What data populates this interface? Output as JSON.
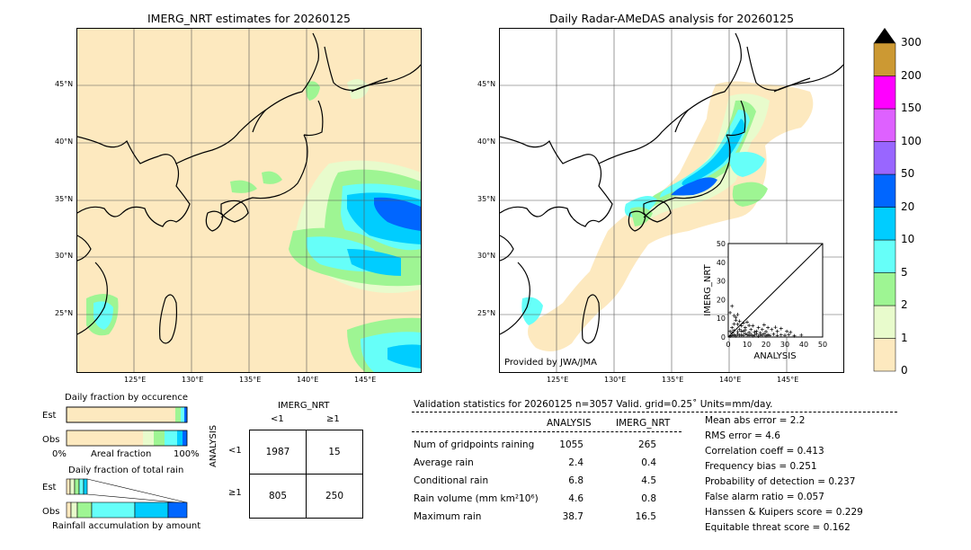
{
  "left_map": {
    "title": "IMERG_NRT estimates for 20260125",
    "lat_ticks": [
      "45°N",
      "40°N",
      "35°N",
      "30°N",
      "25°N"
    ],
    "lon_ticks": [
      "125°E",
      "130°E",
      "135°E",
      "140°E",
      "145°E"
    ]
  },
  "right_map": {
    "title": "Daily Radar-AMeDAS analysis for 20260125",
    "lat_ticks": [
      "45°N",
      "40°N",
      "35°N",
      "30°N",
      "25°N"
    ],
    "lon_ticks": [
      "125°E",
      "130°E",
      "135°E",
      "140°E",
      "145°E"
    ],
    "credit": "Provided by JWA/JMA"
  },
  "colorbar": {
    "labels": [
      "0",
      "1",
      "2",
      "5",
      "10",
      "20",
      "50",
      "100",
      "150",
      "200",
      "300"
    ],
    "colors": [
      "#fde9bf",
      "#e8fbcc",
      "#9ef593",
      "#66fff9",
      "#00cdff",
      "#0066ff",
      "#9966ff",
      "#de61ff",
      "#ff00ff",
      "#cc9933"
    ],
    "extend_color": "#000000"
  },
  "fraction_occurrence": {
    "title": "Daily fraction by occurence",
    "est_label": "Est",
    "obs_label": "Obs",
    "axis_left": "0%",
    "axis_mid": "Areal fraction",
    "axis_right": "100%"
  },
  "fraction_total": {
    "title": "Daily fraction of total rain",
    "est_label": "Est",
    "obs_label": "Obs",
    "axis_label": "Rainfall accumulation by amount"
  },
  "contingency": {
    "title": "IMERG_NRT",
    "col_lt": "<1",
    "col_ge": "≥1",
    "row_axis": "ANALYSIS",
    "row_lt": "<1",
    "row_ge": "≥1",
    "cells": [
      [
        "1987",
        "15"
      ],
      [
        "805",
        "250"
      ]
    ]
  },
  "validation": {
    "header": "Validation statistics for 20260125  n=3057 Valid. grid=0.25˚ Units=mm/day.",
    "col_analysis": "ANALYSIS",
    "col_imerg": "IMERG_NRT",
    "rows": [
      {
        "label": "Num of gridpoints raining",
        "analysis": "1055",
        "imerg": "265"
      },
      {
        "label": "Average rain",
        "analysis": "2.4",
        "imerg": "0.4"
      },
      {
        "label": "Conditional rain",
        "analysis": "6.8",
        "imerg": "4.5"
      },
      {
        "label": "Rain volume (mm km²10⁶)",
        "analysis": "4.6",
        "imerg": "0.8"
      },
      {
        "label": "Maximum rain",
        "analysis": "38.7",
        "imerg": "16.5"
      }
    ],
    "scores": [
      "Mean abs error =    2.2",
      "RMS error =    4.6",
      "Correlation coeff =  0.413",
      "Frequency bias =  0.251",
      "Probability of detection =  0.237",
      "False alarm ratio =  0.057",
      "Hanssen & Kuipers score =  0.229",
      "Equitable threat score =  0.162"
    ]
  },
  "chart_data": {
    "type": "scatter",
    "xlabel": "ANALYSIS",
    "ylabel": "IMERG_NRT",
    "xlim": [
      0,
      50
    ],
    "ylim": [
      0,
      50
    ],
    "x_ticks": [
      "0",
      "10",
      "20",
      "30",
      "40",
      "50"
    ],
    "y_ticks": [
      "0",
      "10",
      "20",
      "30",
      "40",
      "50"
    ],
    "points": [
      [
        1,
        0.5
      ],
      [
        2,
        0.8
      ],
      [
        3,
        1.2
      ],
      [
        4,
        0.6
      ],
      [
        5,
        1.5
      ],
      [
        6,
        0.9
      ],
      [
        7,
        1.1
      ],
      [
        8,
        0.7
      ],
      [
        9,
        1.8
      ],
      [
        10,
        1.2
      ],
      [
        11,
        0.8
      ],
      [
        12,
        1.4
      ],
      [
        13,
        0.6
      ],
      [
        14,
        1.0
      ],
      [
        15,
        1.6
      ],
      [
        16,
        0.5
      ],
      [
        17,
        1.3
      ],
      [
        18,
        0.9
      ],
      [
        19,
        1.7
      ],
      [
        20,
        0.6
      ],
      [
        21,
        1.2
      ],
      [
        22,
        0.8
      ],
      [
        24,
        1.5
      ],
      [
        26,
        0.7
      ],
      [
        28,
        1.1
      ],
      [
        30,
        0.9
      ],
      [
        32,
        1.3
      ],
      [
        35,
        0.6
      ],
      [
        38.7,
        1.0
      ],
      [
        1,
        3
      ],
      [
        2,
        5
      ],
      [
        3,
        7
      ],
      [
        4,
        9
      ],
      [
        5,
        12
      ],
      [
        6,
        4
      ],
      [
        7,
        6
      ],
      [
        8,
        3
      ],
      [
        9,
        5
      ],
      [
        10,
        8
      ],
      [
        12,
        4
      ],
      [
        13,
        6
      ],
      [
        15,
        3
      ],
      [
        16,
        5
      ],
      [
        18,
        4
      ],
      [
        19,
        6.5
      ],
      [
        21,
        5
      ],
      [
        23,
        4
      ],
      [
        26,
        3
      ],
      [
        28,
        4.5
      ],
      [
        31,
        3
      ],
      [
        33,
        2.5
      ],
      [
        2,
        2.2
      ],
      [
        3,
        3.5
      ],
      [
        5,
        2.8
      ],
      [
        7,
        3.2
      ],
      [
        11,
        2.4
      ],
      [
        14,
        2.7
      ],
      [
        17,
        2.2
      ],
      [
        20,
        2.9
      ],
      [
        4,
        10.5
      ],
      [
        6,
        8.5
      ],
      [
        2,
        16.5
      ],
      [
        1,
        13
      ],
      [
        8,
        7.5
      ],
      [
        11,
        6.2
      ],
      [
        3,
        11.5
      ],
      [
        5,
        6.8
      ],
      [
        9,
        3.8
      ],
      [
        25,
        5.2
      ]
    ],
    "diagonal": true
  }
}
